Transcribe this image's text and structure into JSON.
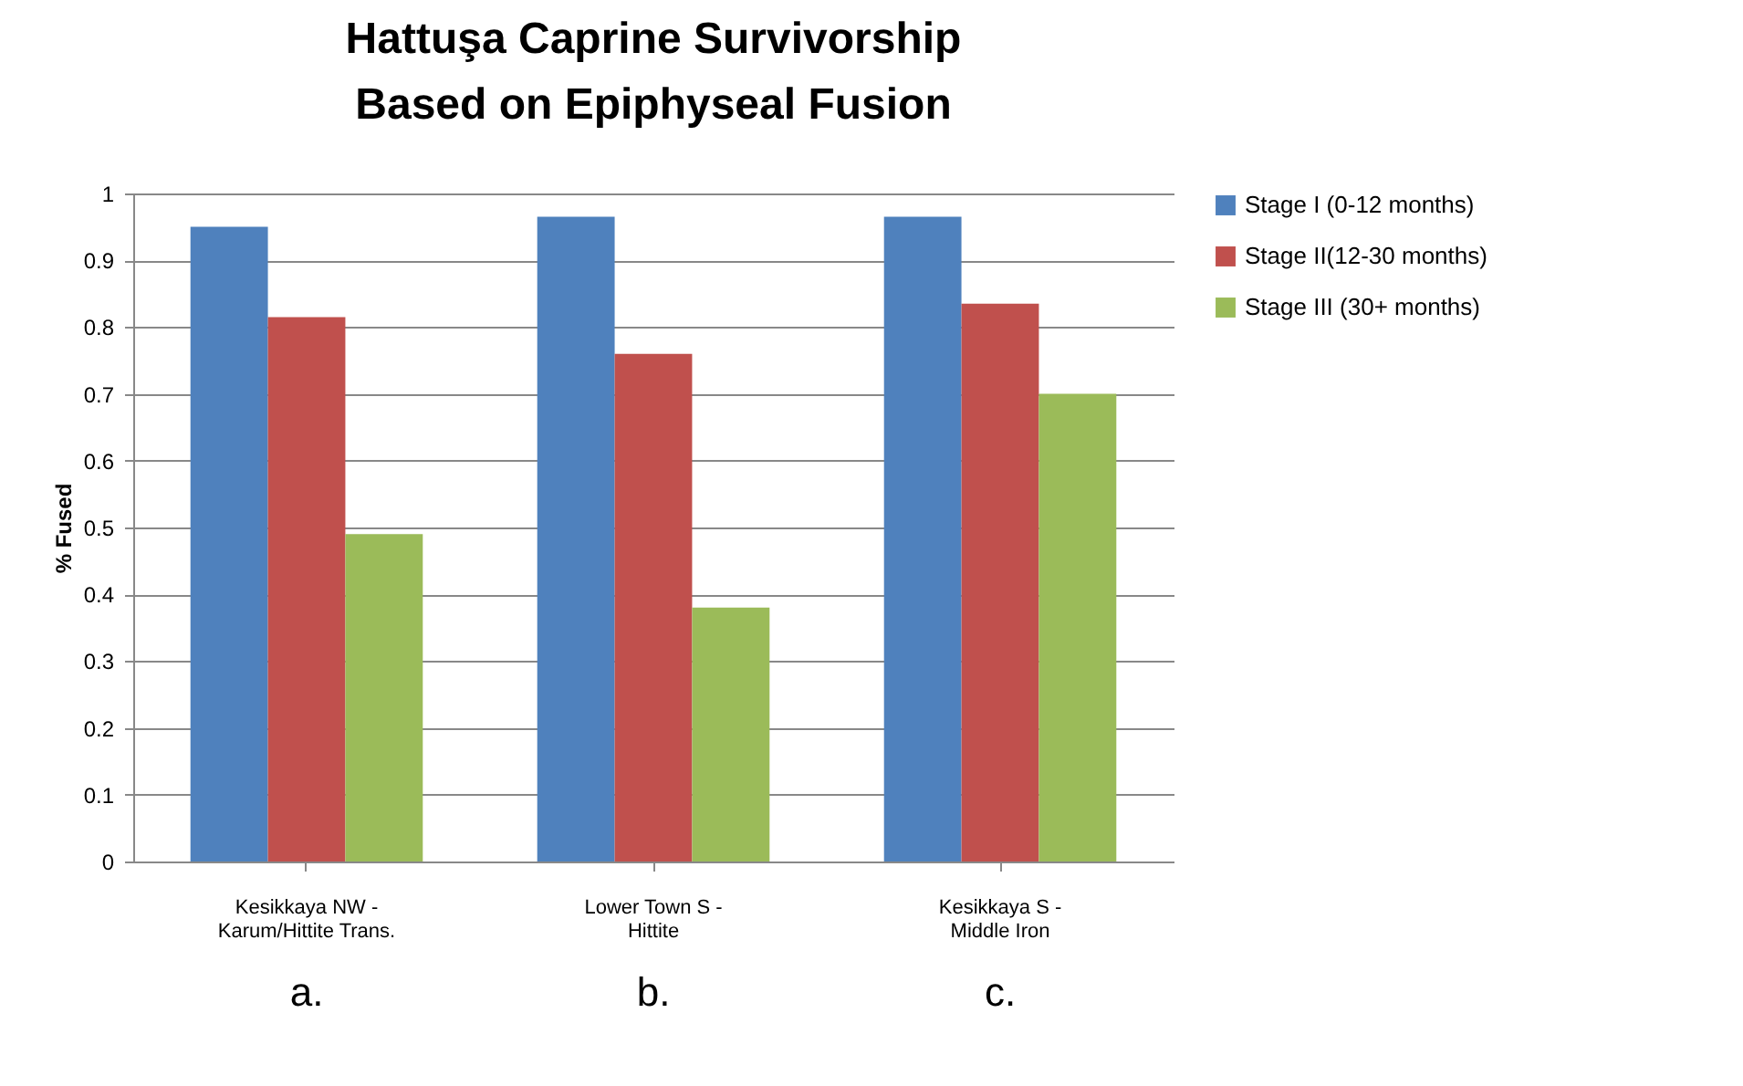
{
  "chart_data": {
    "type": "bar",
    "title": [
      "Hattuşa Caprine Survivorship",
      "Based on Epiphyseal Fusion"
    ],
    "ylabel": "% Fused",
    "categories": [
      "Kesikkaya NW -\nKarum/Hittite Trans.",
      "Lower Town S -\nHittite",
      "Kesikkaya S -\nMiddle Iron"
    ],
    "series": [
      {
        "name": "Stage I (0-12 months)",
        "color": "#4f81bd",
        "values": [
          0.95,
          0.965,
          0.965
        ]
      },
      {
        "name": "Stage II(12-30 months)",
        "color": "#c0504d",
        "values": [
          0.815,
          0.76,
          0.835
        ]
      },
      {
        "name": "Stage III (30+ months)",
        "color": "#9bbb59",
        "values": [
          0.49,
          0.38,
          0.7
        ]
      }
    ],
    "annotations": [
      "a.",
      "b.",
      "c."
    ],
    "ylim": [
      0,
      1
    ],
    "yticks": [
      0,
      0.1,
      0.2,
      0.3,
      0.4,
      0.5,
      0.6,
      0.7,
      0.8,
      0.9,
      1
    ],
    "grid": "y",
    "legend": "right"
  }
}
